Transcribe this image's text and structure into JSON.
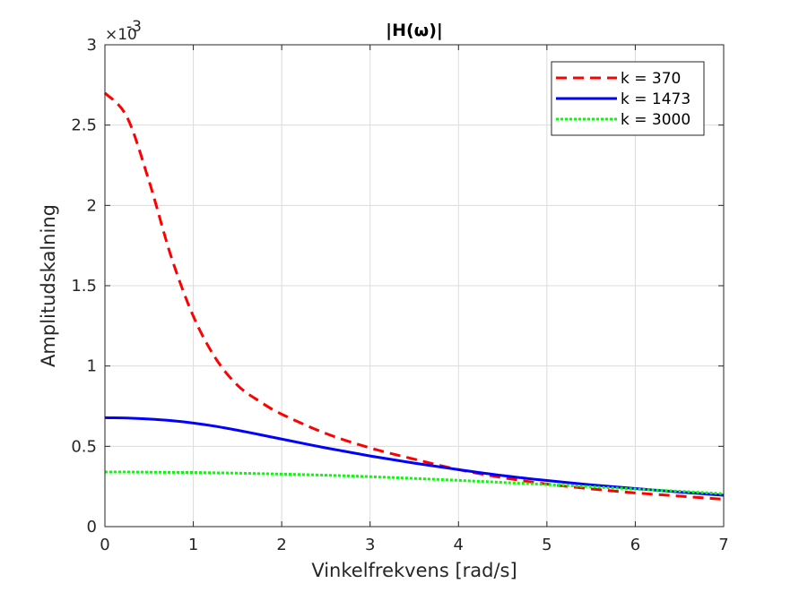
{
  "chart_data": {
    "type": "line",
    "title": "|H(ω)|",
    "xlabel": "Vinkelfrekvens [rad/s]",
    "ylabel": "Amplitudskalning",
    "xlim": [
      0,
      7
    ],
    "ylim": [
      0,
      0.003
    ],
    "x_ticks": [
      0,
      1,
      2,
      3,
      4,
      5,
      6,
      7
    ],
    "y_ticks": [
      0,
      0.0005,
      0.001,
      0.0015,
      0.002,
      0.0025,
      0.003
    ],
    "y_tick_labels": [
      "0",
      "0.5",
      "1",
      "1.5",
      "2",
      "2.5",
      "3"
    ],
    "y_exponent_base": "×10",
    "y_exponent": "-3",
    "grid": true,
    "legend_position": "top-right",
    "x": [
      0,
      0.25,
      0.5,
      0.75,
      1,
      1.25,
      1.5,
      1.75,
      2,
      2.5,
      3,
      3.5,
      4,
      4.5,
      5,
      5.5,
      6,
      6.5,
      7
    ],
    "series": [
      {
        "name": "k = 370",
        "color": "#ff0000",
        "style": "dashed",
        "values": [
          0.0027,
          0.00255,
          0.00215,
          0.00168,
          0.00131,
          0.00105,
          0.00088,
          0.00078,
          0.0007,
          0.00058,
          0.00049,
          0.00042,
          0.000355,
          0.000305,
          0.000265,
          0.000235,
          0.00021,
          0.00019,
          0.00017
        ]
      },
      {
        "name": "k = 1473",
        "color": "#0000ff",
        "style": "solid",
        "values": [
          0.000678,
          0.000676,
          0.00067,
          0.00066,
          0.000645,
          0.000625,
          0.0006,
          0.000573,
          0.000545,
          0.00049,
          0.00044,
          0.000395,
          0.000355,
          0.000318,
          0.000287,
          0.00026,
          0.000237,
          0.000215,
          0.000195
        ]
      },
      {
        "name": "k = 3000",
        "color": "#00ff00",
        "style": "dotted",
        "values": [
          0.00034,
          0.00034,
          0.000339,
          0.000338,
          0.000337,
          0.000335,
          0.000333,
          0.00033,
          0.000327,
          0.00032,
          0.000311,
          0.0003,
          0.000288,
          0.000275,
          0.000262,
          0.000248,
          0.000234,
          0.00022,
          0.000205
        ]
      }
    ]
  }
}
